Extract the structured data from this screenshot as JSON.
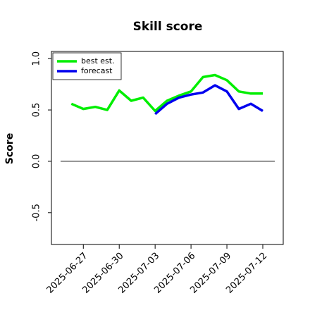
{
  "chart_data": {
    "type": "line",
    "title": "Skill score",
    "y_label": "Score",
    "x": [
      "2025-06-26",
      "2025-06-27",
      "2025-06-28",
      "2025-06-29",
      "2025-06-30",
      "2025-07-01",
      "2025-07-02",
      "2025-07-03",
      "2025-07-04",
      "2025-07-05",
      "2025-07-06",
      "2025-07-07",
      "2025-07-08",
      "2025-07-09",
      "2025-07-10",
      "2025-07-11",
      "2025-07-12"
    ],
    "series": [
      {
        "name": "best est.",
        "color": "#00ee00",
        "values": [
          0.56,
          0.51,
          0.53,
          0.5,
          0.69,
          0.59,
          0.62,
          0.49,
          0.59,
          0.64,
          0.68,
          0.82,
          0.84,
          0.79,
          0.68,
          0.66,
          0.66
        ]
      },
      {
        "name": "forecast",
        "color": "#0000ee",
        "values": [
          null,
          null,
          null,
          null,
          null,
          null,
          null,
          0.46,
          0.56,
          0.62,
          0.65,
          0.67,
          0.74,
          0.68,
          0.51,
          0.56,
          0.49
        ]
      }
    ],
    "hline": 0,
    "xlim": [
      "2025-06-24T08:00",
      "2025-07-13T17:00"
    ],
    "xticks": [
      "2025-06-27",
      "2025-06-30",
      "2025-07-03",
      "2025-07-06",
      "2025-07-09",
      "2025-07-12"
    ],
    "xtick_colors": [
      "#000000",
      "#000000",
      "#228b22",
      "#000000",
      "#000000",
      "#000000"
    ],
    "ylim": [
      -0.81,
      1.07
    ],
    "yticks": [
      -0.5,
      {
        "value": 0,
        "label": "0.0"
      },
      0.5,
      {
        "value": 1,
        "label": "1.0"
      }
    ],
    "legend": "upper left"
  }
}
